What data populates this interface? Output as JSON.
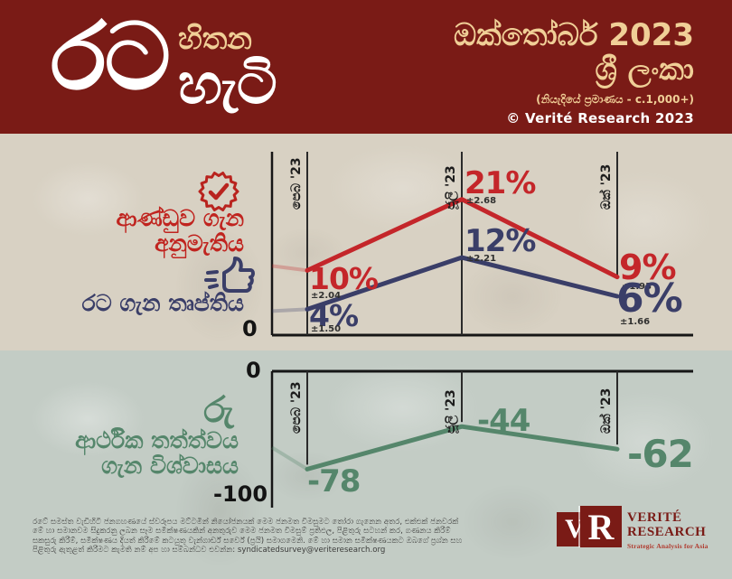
{
  "header": {
    "title_word1": "රට",
    "title_word2": "හිතන",
    "title_word3": "හැටි",
    "date_line": "ඔක්තෝබර් 2023",
    "country_line": "ශ්‍රී ලංකා",
    "sample_note": "(නියැදියේ ප්‍රමාණය - c.1,000+)",
    "copyright": "© Verité Research 2023"
  },
  "panels": {
    "approval_label_line1": "ආණ්ඩුව ගැන",
    "approval_label_line2": "අනුමැතිය",
    "satisfaction_label": "රට ගැන තෘප්තිය",
    "economy_icon_text": "රු",
    "economy_label_line1": "ආර්ථික තත්ත්වය",
    "economy_label_line2": "ගැන විශ්වාසය"
  },
  "chart_data": [
    {
      "type": "line",
      "categories": [
        "පෙබ '23",
        "ජූලි '23",
        "ඔක් '23"
      ],
      "ylabel_zero": "0",
      "ylim": [
        0,
        25
      ],
      "grid": false,
      "series": [
        {
          "name": "ආණ්ඩුව ගැන අනුමැතිය (approval of government)",
          "color": "#c4262a",
          "values": [
            10,
            21,
            9
          ],
          "labels": [
            "10%",
            "21%",
            "9%"
          ],
          "margin_of_error": [
            "±2.04",
            "±2.68",
            "±1.93"
          ]
        },
        {
          "name": "රට ගැන තෘප්තිය (satisfaction with country)",
          "color": "#3a3e68",
          "values": [
            4,
            12,
            6
          ],
          "labels": [
            "4%",
            "12%",
            "6%"
          ],
          "margin_of_error": [
            "±1.50",
            "±2.21",
            "±1.66"
          ]
        }
      ]
    },
    {
      "type": "line",
      "categories": [
        "පෙබ '23",
        "ජූලි '23",
        "ඔක් '23"
      ],
      "ylabel_top": "0",
      "ylabel_bottom": "-100",
      "ylim": [
        -100,
        0
      ],
      "grid": false,
      "series": [
        {
          "name": "ආර්ථික තත්ත්වය ගැන විශ්වාසය (confidence in economic conditions)",
          "color": "#55866b",
          "values": [
            -78,
            -44,
            -62
          ],
          "labels": [
            "-78",
            "-44",
            "-62"
          ]
        }
      ]
    }
  ],
  "footer": {
    "lines": [
      "රටේ සමස්ත වැඩිහිටි ජනගහණයේ ස්වරූපය මට්ටමින් නියෝජනයක් මෙම ජනමත විමසුමට තෝරා ගැනෙන අතර, එක්එක් ජනවරක්",
      "මේ හා සමානවම සිදුකරනු ලබන සෑම සමීක්ෂණයකින් අනතුරුව මෙම ජනමත විමසුම් ප්‍රතිඵල, පිළිතුරු සටහන් කර, ගණනය කිරීම්",
      "සකසුරු කිරීම්, සමීක්ෂණය දියත් කිරීමේ කටයුතු වැන්ගාර්ඩ් සර්වේ (ප්‍රයි) සමාගමෙනි. මේ හා සමාන සමීක්ෂණයකට ඔබගේ ප්‍රශ්න සහ",
      "පිළිතුරු ඇතුළත් කිරීමට කැමති නම් අප හා සම්බන්ධව එවන්න:"
    ],
    "email": "syndicatedsurvey@veriteresearch.org"
  },
  "logo": {
    "letter1": "V",
    "letter2": "R",
    "name_line1": "VERITÉ",
    "name_line2": "RESEARCH",
    "tagline": "Strategic Analysis for Asia"
  },
  "colors": {
    "header_bg": "#7a1b16",
    "cream_accent": "#f0cf97",
    "approval_red": "#c4262a",
    "satisfaction_navy": "#3a3e68",
    "economy_green": "#55866b",
    "top_section_bg": "#d8d1c3",
    "bottom_section_bg": "#c3ccc5"
  }
}
